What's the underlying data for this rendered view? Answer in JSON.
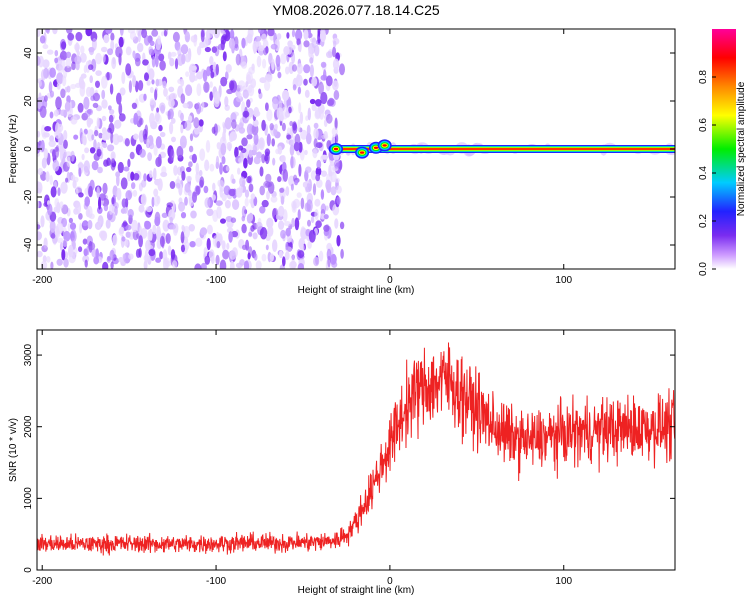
{
  "chart_data": [
    {
      "type": "heatmap",
      "title": "YM08.2026.077.18.14.C25",
      "xlabel": "Height of straight line (km)",
      "ylabel": "Frequency (Hz)",
      "xlim": [
        -203,
        164
      ],
      "ylim": [
        -50,
        50
      ],
      "xticks": [
        -200,
        -100,
        0,
        100
      ],
      "yticks": [
        -40,
        -20,
        0,
        20,
        40
      ],
      "colorbar": {
        "label": "Normalized spectral amplitude",
        "range": [
          0,
          1
        ],
        "ticks": [
          0.0,
          0.2,
          0.4,
          0.6,
          0.8
        ],
        "colormap": [
          "#ffffff",
          "#cc99ff",
          "#7a2cf0",
          "#2222ff",
          "#00ccff",
          "#00ee00",
          "#ffff00",
          "#ff8800",
          "#ff0000",
          "#ff00aa"
        ]
      },
      "noise_region_x": [
        -203,
        -32
      ],
      "signal_line": {
        "frequency_hz": 0,
        "x_start": -33,
        "x_end": 164,
        "amplitude": 0.9
      },
      "grid": false
    },
    {
      "type": "line",
      "xlabel": "Height of straight line (km)",
      "ylabel": "SNR (10 * v/v)",
      "xlim": [
        -203,
        164
      ],
      "ylim": [
        0,
        3350
      ],
      "xticks": [
        -200,
        -100,
        0,
        100
      ],
      "yticks": [
        0,
        1000,
        2000,
        3000
      ],
      "series": [
        {
          "color": "#ee2222",
          "x": [
            -203,
            -180,
            -150,
            -120,
            -90,
            -60,
            -40,
            -30,
            -25,
            -20,
            -15,
            -10,
            -5,
            0,
            5,
            10,
            15,
            20,
            25,
            30,
            35,
            40,
            50,
            60,
            70,
            80,
            100,
            120,
            140,
            164
          ],
          "y": [
            370,
            360,
            370,
            360,
            375,
            380,
            390,
            420,
            500,
            650,
            900,
            1150,
            1450,
            1750,
            2050,
            2300,
            2480,
            2550,
            2600,
            2650,
            2620,
            2500,
            2250,
            2000,
            1850,
            1800,
            1900,
            1950,
            1980,
            2000
          ]
        }
      ],
      "grid": false
    }
  ]
}
